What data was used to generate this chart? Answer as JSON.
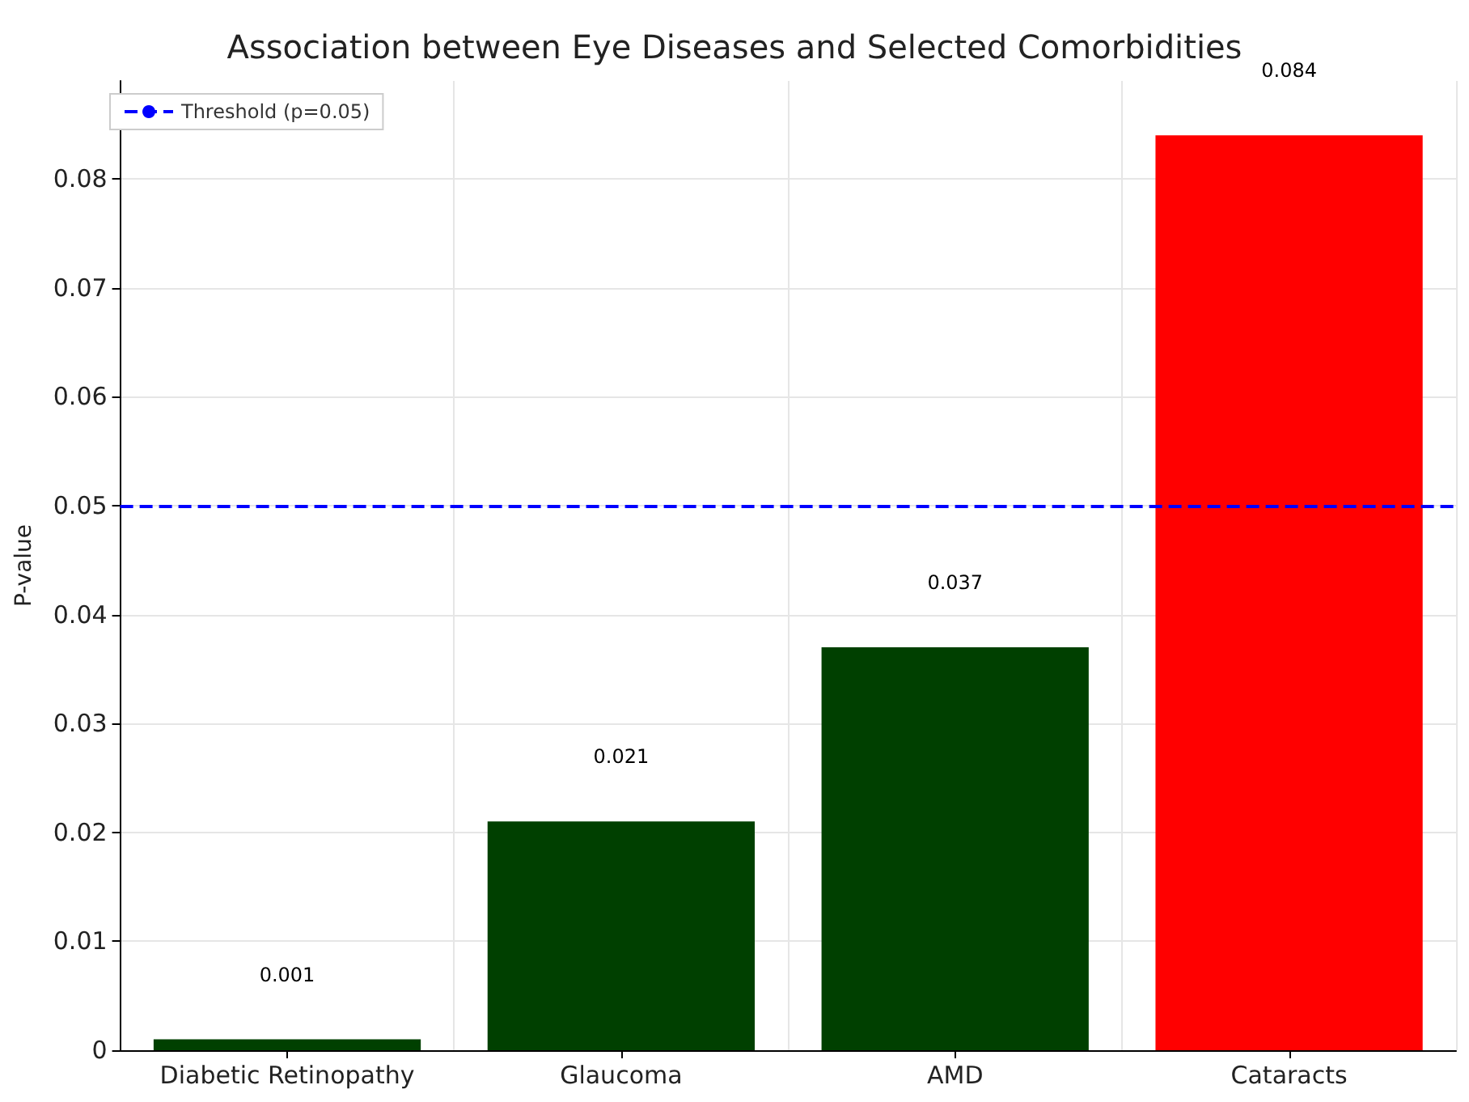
{
  "chart_data": {
    "type": "bar",
    "title": "Association between Eye Diseases and Selected Comorbidities",
    "ylabel": "P-value",
    "categories": [
      "Diabetic Retinopathy",
      "Glaucoma",
      "AMD",
      "Cataracts"
    ],
    "values": [
      0.001,
      0.021,
      0.037,
      0.084
    ],
    "colors": [
      "#004000",
      "#004000",
      "#004000",
      "#ff0000"
    ],
    "data_labels": true,
    "ylim": [
      0,
      0.089
    ],
    "yticks": [
      0,
      0.01,
      0.02,
      0.03,
      0.04,
      0.05,
      0.06,
      0.07,
      0.08
    ],
    "ref_lines": [
      {
        "axis": "y",
        "value": 0.05,
        "label": "Threshold (p=0.05)",
        "color": "#0000ff",
        "line_style": "dashed"
      }
    ],
    "grid": true,
    "legend": "top left"
  }
}
